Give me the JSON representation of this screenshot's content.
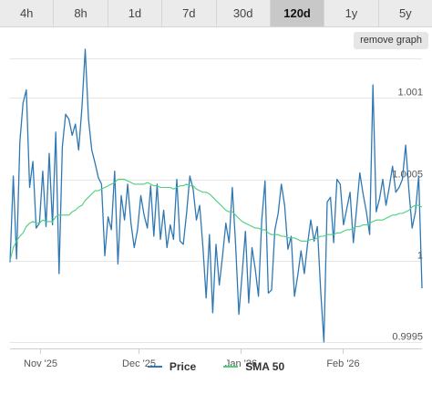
{
  "tabs": [
    {
      "label": "4h",
      "active": false
    },
    {
      "label": "8h",
      "active": false
    },
    {
      "label": "1d",
      "active": false
    },
    {
      "label": "7d",
      "active": false
    },
    {
      "label": "30d",
      "active": false
    },
    {
      "label": "120d",
      "active": true
    },
    {
      "label": "1y",
      "active": false
    },
    {
      "label": "5y",
      "active": false
    }
  ],
  "remove_graph_label": "remove graph",
  "colors": {
    "price": "#2f78b4",
    "sma": "#4cd07d",
    "grid": "#e6e6e6"
  },
  "chart_data": {
    "type": "line",
    "x_labels": [
      "Nov '25",
      "Dec '25",
      "Jan '26",
      "Feb '26"
    ],
    "y_ticks": [
      0.9995,
      1,
      1.0005,
      1.001
    ],
    "y_tick_labels": [
      "0.9995",
      "1",
      "1.0005",
      "1.001"
    ],
    "ylim": [
      0.99946,
      1.00121
    ],
    "x_start": "2025-10-23",
    "x_end": "2026-02-25",
    "grid": "horizontal",
    "legend_position": "bottom",
    "series": [
      {
        "name": "Price",
        "values": [
          0.99999,
          1.00052,
          1.00001,
          1.00073,
          1.00097,
          1.00105,
          1.00045,
          1.00061,
          1.0002,
          1.00023,
          1.00055,
          1.00021,
          1.00066,
          1.00022,
          1.00079,
          0.99992,
          1.0007,
          1.0009,
          1.00087,
          1.00077,
          1.00084,
          1.00068,
          1.00094,
          1.0013,
          1.00087,
          1.00068,
          1.0006,
          1.00051,
          1.00047,
          1.00003,
          1.00027,
          1.00019,
          1.00055,
          0.99998,
          1.0004,
          1.00025,
          1.00047,
          1.00023,
          1.00008,
          1.00019,
          1.0004,
          1.00028,
          1.0002,
          1.00046,
          1.00015,
          1.00047,
          1.00013,
          1.00031,
          1.00008,
          1.00022,
          1.00013,
          1.0005,
          1.00012,
          1.0001,
          1.00029,
          1.00052,
          1.00044,
          1.00025,
          1.00034,
          1.00008,
          0.99977,
          1.00016,
          0.99968,
          1.0001,
          0.99985,
          1.00003,
          1.00023,
          1.00011,
          1.00045,
          1.0001,
          0.99967,
          0.99992,
          1.00018,
          0.99974,
          1.00008,
          0.99995,
          0.99978,
          1.00025,
          1.00049,
          0.9998,
          0.99982,
          1.00019,
          1.00029,
          1.00047,
          1.00034,
          1.00007,
          1.00015,
          0.99978,
          0.99991,
          1.00006,
          0.99992,
          1.0001,
          1.00025,
          1.00012,
          1.00021,
          0.99982,
          0.9995,
          1.00036,
          1.00039,
          1.00011,
          1.0005,
          1.00047,
          1.00022,
          1.00032,
          1.00042,
          1.00011,
          1.00032,
          1.00054,
          1.00041,
          1.0003,
          1.00016,
          1.00108,
          1.0003,
          1.00038,
          1.0005,
          1.00034,
          1.00045,
          1.00058,
          1.00042,
          1.00045,
          1.0005,
          1.00071,
          1.00043,
          1.0002,
          1.0003,
          1.00052,
          0.99983
        ]
      },
      {
        "name": "SMA 50",
        "values": [
          1.0,
          1.00008,
          1.00012,
          1.00015,
          1.00017,
          1.00021,
          1.00023,
          1.00024,
          1.00023,
          1.00023,
          1.00025,
          1.00024,
          1.00024,
          1.00024,
          1.00027,
          1.00028,
          1.00028,
          1.00028,
          1.00028,
          1.0003,
          1.00031,
          1.00033,
          1.00034,
          1.00037,
          1.00039,
          1.00041,
          1.00043,
          1.00043,
          1.00044,
          1.00045,
          1.00046,
          1.00047,
          1.00048,
          1.0005,
          1.0005,
          1.0005,
          1.00049,
          1.00048,
          1.00047,
          1.00047,
          1.00047,
          1.00047,
          1.00048,
          1.00047,
          1.00046,
          1.00046,
          1.00045,
          1.00045,
          1.00045,
          1.00045,
          1.00044,
          1.00045,
          1.00046,
          1.00046,
          1.00047,
          1.00046,
          1.00046,
          1.00044,
          1.00043,
          1.00042,
          1.00042,
          1.00041,
          1.00039,
          1.00037,
          1.00035,
          1.00033,
          1.00031,
          1.0003,
          1.0003,
          1.00028,
          1.00026,
          1.00024,
          1.00023,
          1.00022,
          1.00021,
          1.0002,
          1.0002,
          1.00019,
          1.00019,
          1.00017,
          1.00016,
          1.00016,
          1.00016,
          1.00015,
          1.00015,
          1.00014,
          1.00014,
          1.00014,
          1.00013,
          1.00012,
          1.00012,
          1.00012,
          1.00013,
          1.00013,
          1.00014,
          1.00015,
          1.00015,
          1.00016,
          1.00016,
          1.00016,
          1.00017,
          1.00017,
          1.00018,
          1.00019,
          1.00019,
          1.0002,
          1.00021,
          1.00021,
          1.00022,
          1.00022,
          1.00023,
          1.00024,
          1.00025,
          1.00025,
          1.00025,
          1.00026,
          1.00027,
          1.00028,
          1.00028,
          1.00029,
          1.00029,
          1.0003,
          1.00031,
          1.00033,
          1.00034,
          1.00034,
          1.00033
        ]
      }
    ]
  }
}
